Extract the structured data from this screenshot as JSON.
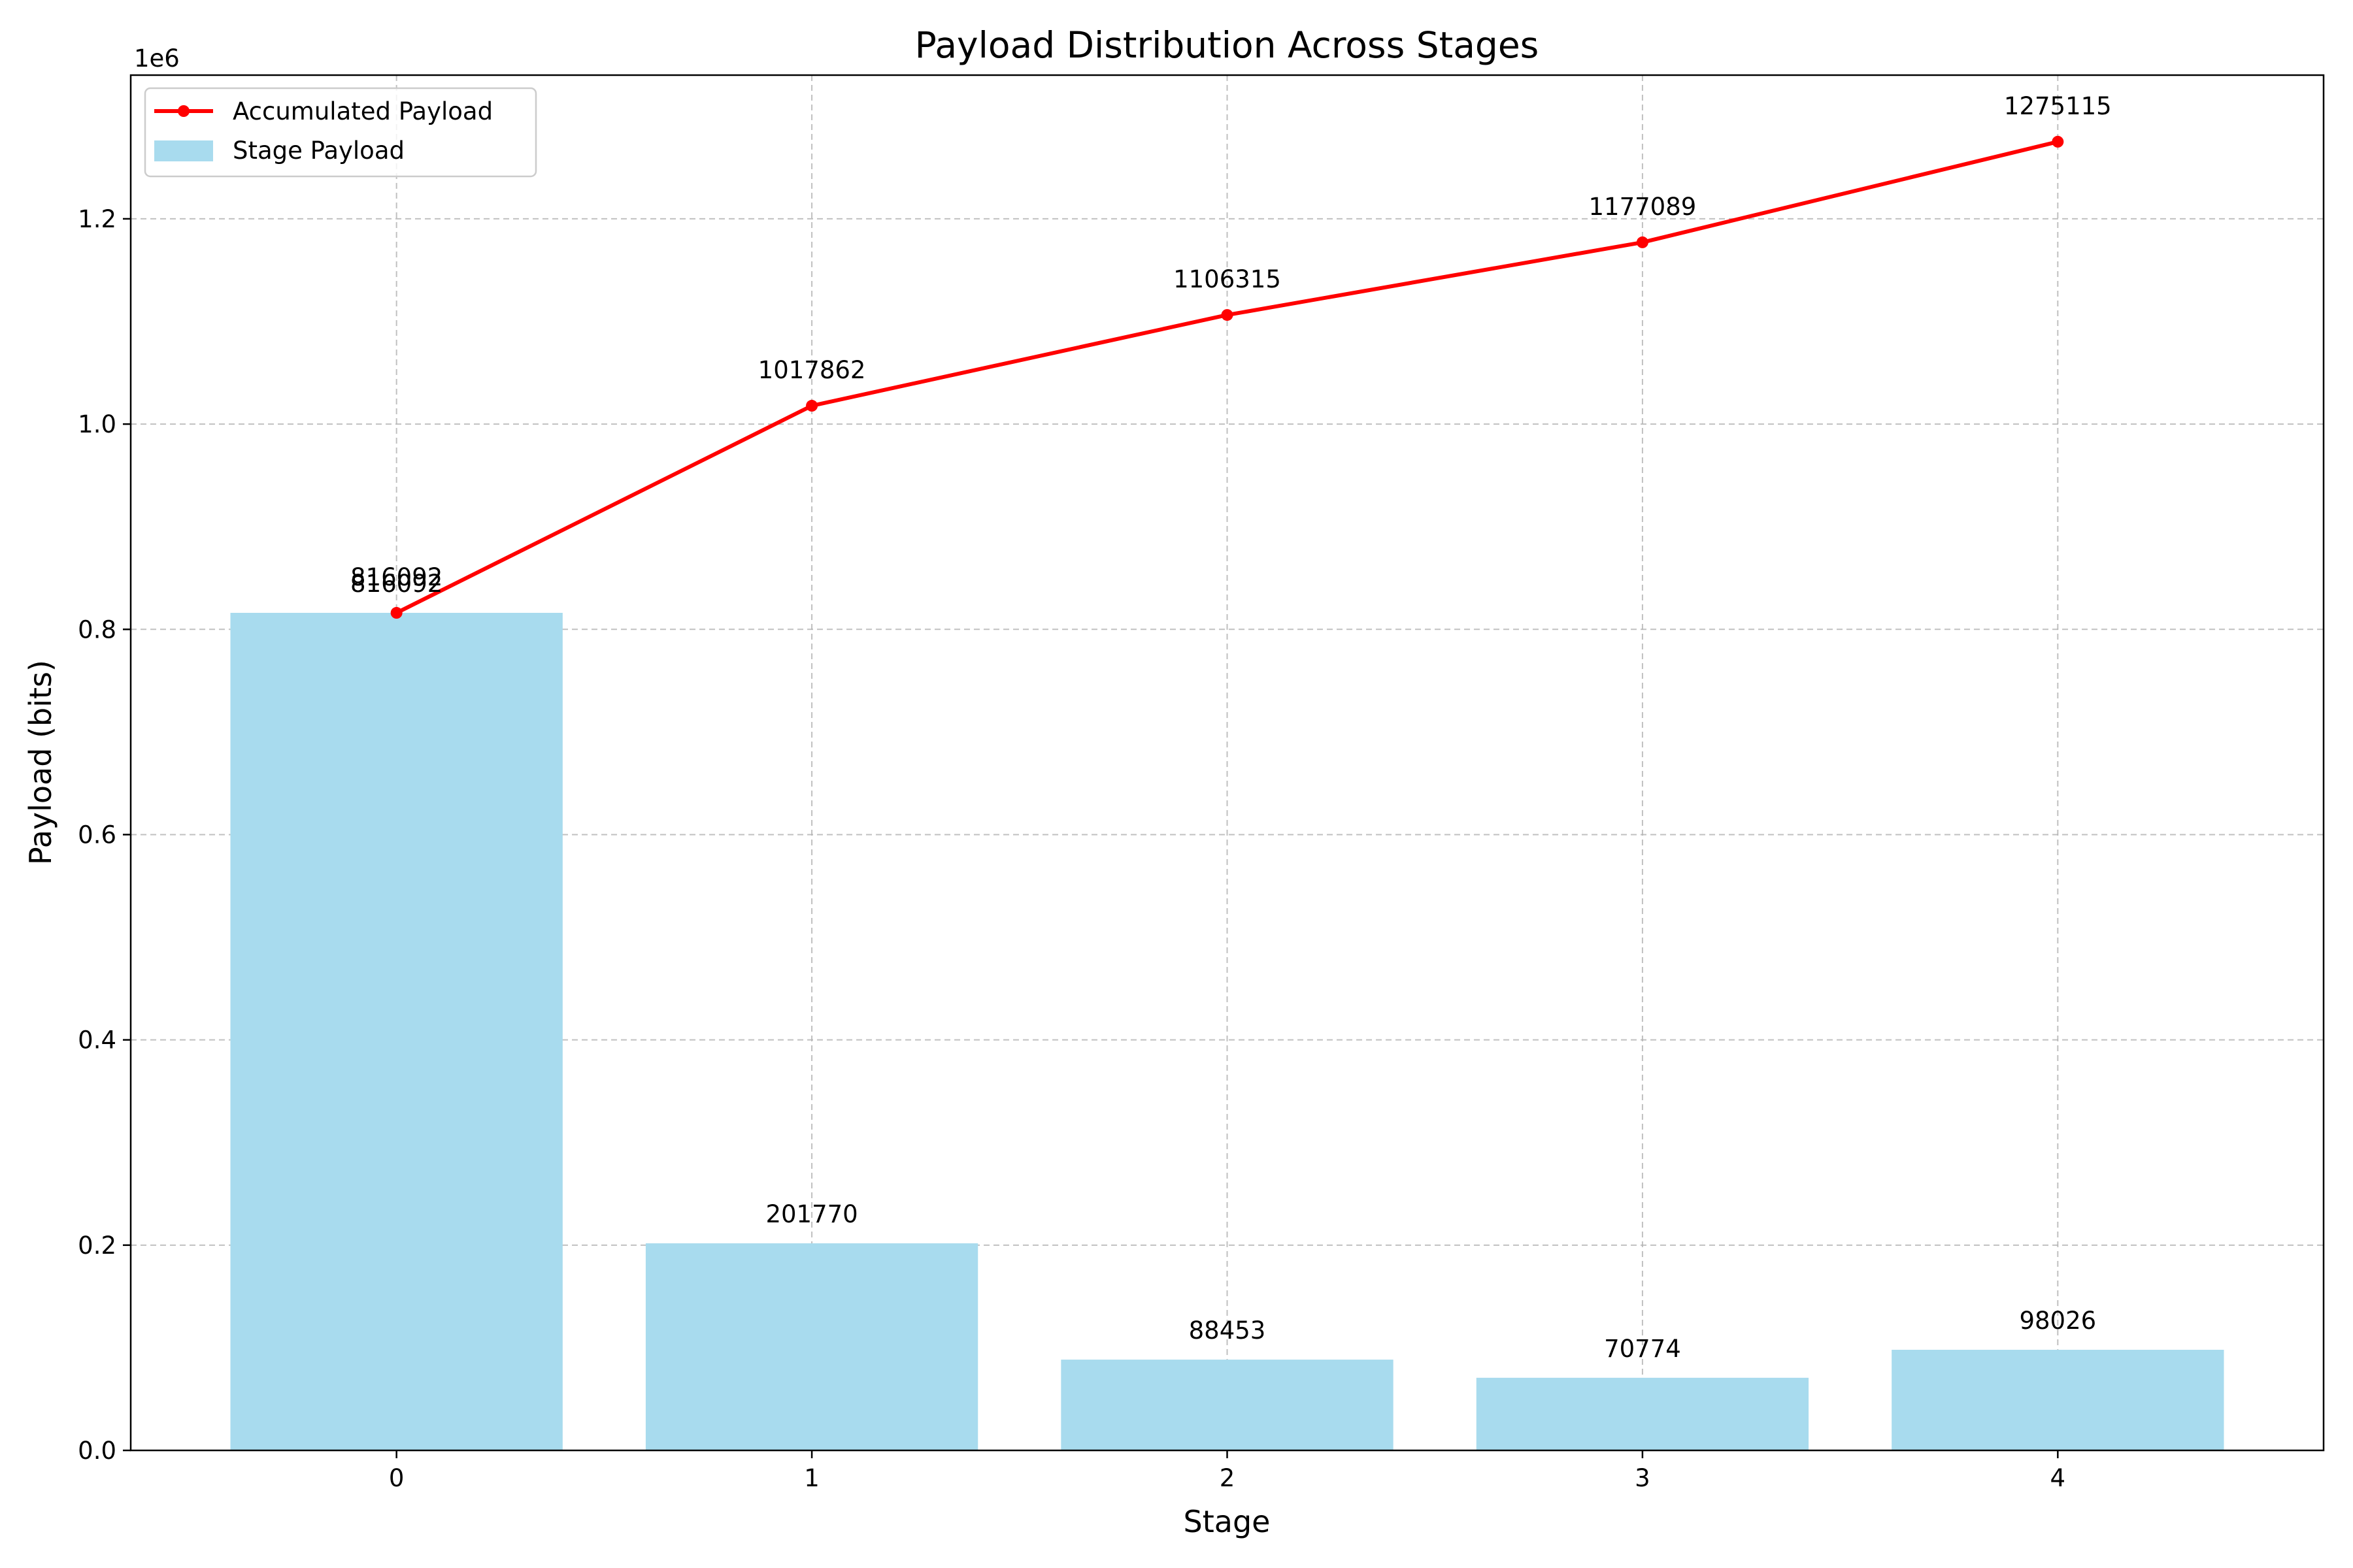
{
  "chart_data": {
    "type": "bar",
    "title": "Payload Distribution Across Stages",
    "xlabel": "Stage",
    "ylabel": "Payload (bits)",
    "y_offset_label": "1e6",
    "categories": [
      "0",
      "1",
      "2",
      "3",
      "4"
    ],
    "x_ticks": [
      "0",
      "1",
      "2",
      "3",
      "4"
    ],
    "y_ticks": [
      "0.0",
      "0.2",
      "0.4",
      "0.6",
      "0.8",
      "1.0",
      "1.2"
    ],
    "ylim": [
      0,
      1340000
    ],
    "xlim": [
      -0.64,
      4.64
    ],
    "grid": true,
    "legend_position": "upper-left",
    "series": [
      {
        "name": "Stage Payload",
        "type": "bar",
        "color": "#a8dbee",
        "values": [
          816092,
          201770,
          88453,
          70774,
          98026
        ],
        "labels": [
          "816092",
          "201770",
          "88453",
          "70774",
          "98026"
        ]
      },
      {
        "name": "Accumulated Payload",
        "type": "line",
        "color": "#ff0000",
        "values": [
          816092,
          1017862,
          1106315,
          1177089,
          1275115
        ],
        "labels": [
          "816092",
          "1017862",
          "1106315",
          "1177089",
          "1275115"
        ]
      }
    ]
  }
}
